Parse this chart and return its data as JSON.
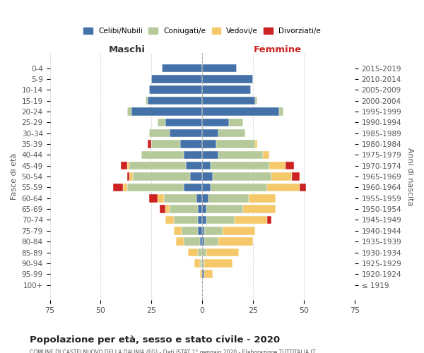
{
  "age_groups": [
    "100+",
    "95-99",
    "90-94",
    "85-89",
    "80-84",
    "75-79",
    "70-74",
    "65-69",
    "60-64",
    "55-59",
    "50-54",
    "45-49",
    "40-44",
    "35-39",
    "30-34",
    "25-29",
    "20-24",
    "15-19",
    "10-14",
    "5-9",
    "0-4"
  ],
  "birth_years": [
    "≤ 1919",
    "1920-1924",
    "1925-1929",
    "1930-1934",
    "1935-1939",
    "1940-1944",
    "1945-1949",
    "1950-1954",
    "1955-1959",
    "1960-1964",
    "1965-1969",
    "1970-1974",
    "1975-1979",
    "1980-1984",
    "1985-1989",
    "1990-1994",
    "1995-1999",
    "2000-2004",
    "2005-2009",
    "2010-2014",
    "2015-2019"
  ],
  "maschi": {
    "celibi": [
      0,
      0,
      0,
      0,
      1,
      2,
      2,
      2,
      3,
      9,
      6,
      8,
      9,
      11,
      16,
      18,
      35,
      27,
      26,
      25,
      20
    ],
    "coniugati": [
      0,
      0,
      1,
      2,
      8,
      8,
      12,
      14,
      16,
      28,
      28,
      28,
      21,
      14,
      10,
      4,
      2,
      1,
      0,
      0,
      0
    ],
    "vedovi": [
      0,
      1,
      3,
      5,
      4,
      4,
      4,
      2,
      3,
      2,
      2,
      1,
      0,
      0,
      0,
      0,
      0,
      0,
      0,
      0,
      0
    ],
    "divorziati": [
      0,
      0,
      0,
      0,
      0,
      0,
      0,
      3,
      4,
      5,
      1,
      3,
      0,
      2,
      0,
      0,
      0,
      0,
      0,
      0,
      0
    ]
  },
  "femmine": {
    "nubili": [
      0,
      1,
      0,
      0,
      1,
      1,
      2,
      2,
      3,
      4,
      5,
      4,
      8,
      7,
      8,
      13,
      38,
      26,
      24,
      25,
      17
    ],
    "coniugate": [
      0,
      0,
      1,
      2,
      7,
      9,
      14,
      18,
      20,
      28,
      29,
      29,
      22,
      19,
      13,
      7,
      2,
      1,
      0,
      0,
      0
    ],
    "vedove": [
      0,
      4,
      14,
      16,
      17,
      16,
      16,
      16,
      13,
      16,
      10,
      8,
      3,
      1,
      0,
      0,
      0,
      0,
      0,
      0,
      0
    ],
    "divorziate": [
      0,
      0,
      0,
      0,
      0,
      0,
      2,
      0,
      0,
      3,
      4,
      4,
      0,
      0,
      0,
      0,
      0,
      0,
      0,
      0,
      0
    ]
  },
  "colors": {
    "celibi": "#4472a8",
    "coniugati": "#b5c99a",
    "vedovi": "#f5c96a",
    "divorziati": "#cc2222"
  },
  "title": "Popolazione per età, sesso e stato civile - 2020",
  "subtitle": "COMUNE DI CASTELNUOVO DELLA DAUNIA (FG) - Dati ISTAT 1° gennaio 2020 - Elaborazione TUTTITALIA.IT",
  "xlim": 75,
  "ylabel_left": "Fasce di età",
  "ylabel_right": "Anni di nascita",
  "xlabel_maschi": "Maschi",
  "xlabel_femmine": "Femmine",
  "legend_labels": [
    "Celibi/Nubili",
    "Coniugati/e",
    "Vedovi/e",
    "Divorziati/e"
  ]
}
